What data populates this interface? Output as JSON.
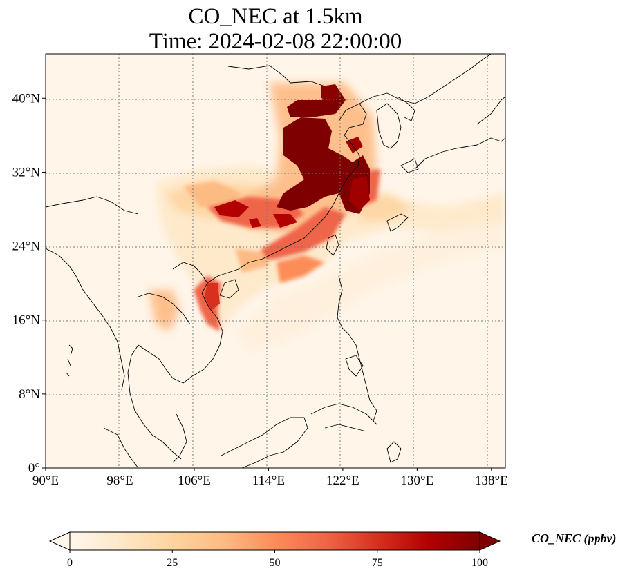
{
  "title": {
    "line1": "CO_NEC at 1.5km",
    "line2": "Time: 2024-02-08 22:00:00"
  },
  "map": {
    "lon_range": [
      90,
      139.5
    ],
    "lat_range": [
      0,
      44.8
    ],
    "lon_ticks": [
      90,
      98,
      106,
      114,
      122,
      130,
      138
    ],
    "lat_ticks": [
      0,
      8,
      16,
      24,
      32,
      40
    ],
    "lon_tick_labels": [
      "90°E",
      "98°E",
      "106°E",
      "114°E",
      "122°E",
      "130°E",
      "138°E"
    ],
    "lat_tick_labels": [
      "0°",
      "8°N",
      "16°N",
      "24°N",
      "32°N",
      "40°N"
    ],
    "gridlines": "dotted",
    "colormap": "OrRd",
    "colors": {
      "low": "#fff7ec",
      "mid": "#fc8d59",
      "high": "#7f0000"
    }
  },
  "colorbar": {
    "label": "CO_NEC (ppbv)",
    "ticks": [
      0,
      25,
      50,
      75,
      100
    ],
    "tick_labels": [
      "0",
      "25",
      "50",
      "75",
      "100"
    ],
    "range": [
      0,
      100
    ],
    "extend": "both"
  }
}
